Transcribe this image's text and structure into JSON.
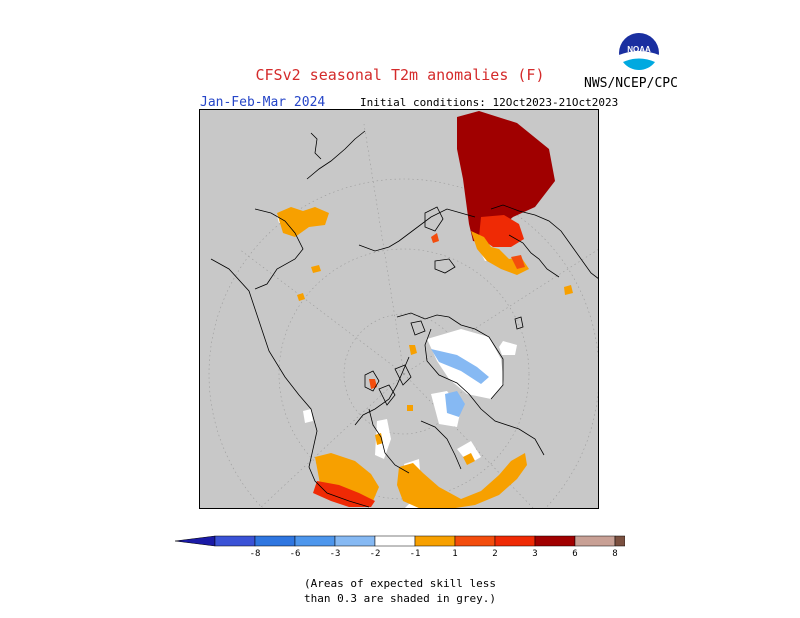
{
  "header": {
    "title": "CFSv2 seasonal T2m anomalies (F)",
    "organization": "NWS/NCEP/CPC",
    "period": "Jan-Feb-Mar 2024",
    "initial_conditions": "Initial conditions: 12Oct2023-21Oct2023"
  },
  "logo": {
    "text": "NOAA"
  },
  "legend": {
    "labels": [
      "-8",
      "-6",
      "-3",
      "-2",
      "-1",
      "1",
      "2",
      "3",
      "6",
      "8"
    ],
    "colors": [
      "#1a1aa6",
      "#3a52d6",
      "#2f76e0",
      "#4d96ec",
      "#86b9f3",
      "#ffffff",
      "#f7a000",
      "#f34d0d",
      "#ef2a05",
      "#a00000",
      "#c8a095",
      "#7b5040"
    ]
  },
  "map": {
    "background_color": "#c8c8c8",
    "coastline_color": "#000000",
    "grid_color": "#9a9a9a"
  },
  "footnote": {
    "line1": "(Areas of expected skill less",
    "line2": "than 0.3 are shaded in grey.)"
  }
}
